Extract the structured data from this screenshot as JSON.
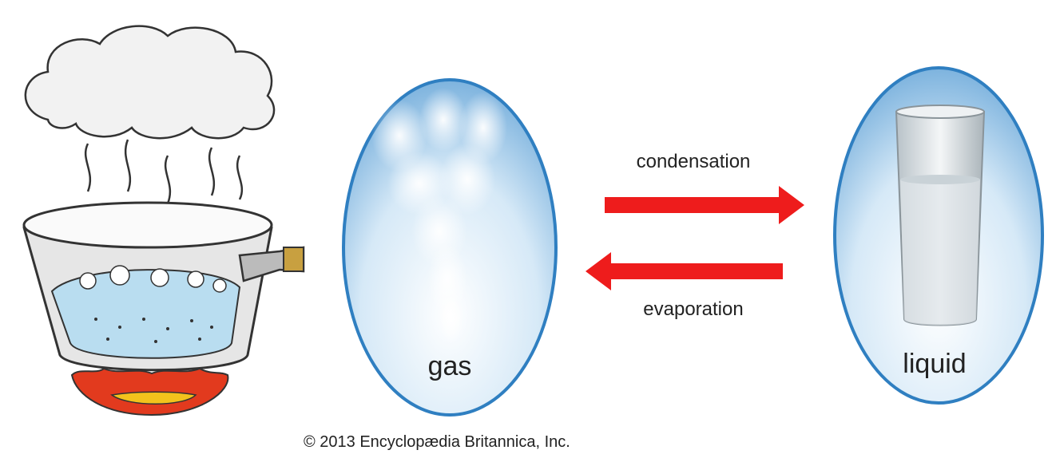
{
  "nodes": [
    {
      "label": "gas"
    },
    {
      "label": "liquid"
    }
  ],
  "edges": [
    {
      "label": "condensation"
    },
    {
      "label": "evaporation"
    }
  ],
  "credit": "© 2013 Encyclopædia Britannica, Inc."
}
